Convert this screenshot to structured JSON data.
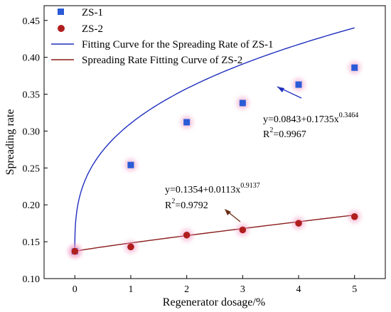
{
  "chart_data": {
    "type": "scatter",
    "title": "",
    "xlabel": "Regenerator dosage/%",
    "ylabel": "Spreading rate",
    "xlim": [
      -0.55,
      5.55
    ],
    "ylim": [
      0.1,
      0.47
    ],
    "x_ticks": [
      0,
      1,
      2,
      3,
      4,
      5
    ],
    "y_ticks": [
      0.1,
      0.15,
      0.2,
      0.25,
      0.3,
      0.35,
      0.4,
      0.45
    ],
    "x_tick_labels": [
      "0",
      "1",
      "2",
      "3",
      "4",
      "5"
    ],
    "y_tick_labels": [
      "0.10",
      "0.15",
      "0.20",
      "0.25",
      "0.30",
      "0.35",
      "0.40",
      "0.45"
    ],
    "grid": false,
    "legend_position": "top-left",
    "series": [
      {
        "name": "ZS-1",
        "marker": "square",
        "color": "#2a5bd7",
        "x": [
          0,
          1,
          2,
          3,
          4,
          5
        ],
        "y": [
          0.137,
          0.254,
          0.312,
          0.338,
          0.363,
          0.386
        ]
      },
      {
        "name": "ZS-2",
        "marker": "circle",
        "color": "#b01e1e",
        "x": [
          0,
          1,
          2,
          3,
          4,
          5
        ],
        "y": [
          0.137,
          0.143,
          0.159,
          0.166,
          0.175,
          0.184
        ]
      }
    ],
    "fits": [
      {
        "name": "Fitting Curve for the Spreading Rate of ZS-1",
        "color": "#1f2fbf",
        "a": 0.0843,
        "b": 0.1735,
        "c": 0.3464
      },
      {
        "name": "Spreading Rate Fitting Curve of ZS-2",
        "color": "#8b1a1a",
        "a": 0.1354,
        "b": 0.0113,
        "c": 0.9137
      }
    ],
    "annotations": [
      {
        "equation_base": "y=0.0843+0.1735x",
        "equation_exp": "0.3464",
        "r2_prefix": "R",
        "r2_sup": "2",
        "r2_value": "=0.9967",
        "arrow_color": "#1f2fbf"
      },
      {
        "equation_base": "y=0.1354+0.0113x",
        "equation_exp": "0.9137",
        "r2_prefix": "R",
        "r2_sup": "2",
        "r2_value": "=0.9792",
        "arrow_color": "#6b2d16"
      }
    ]
  }
}
